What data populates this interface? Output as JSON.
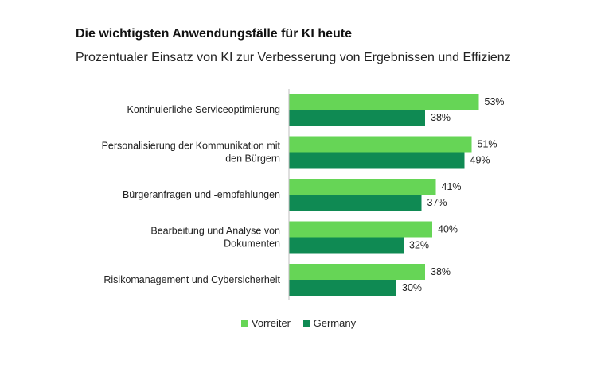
{
  "chart_data": {
    "type": "bar",
    "orientation": "horizontal",
    "title": "Die wichtigsten Anwendungsfälle für KI heute",
    "subtitle": "Prozentualer Einsatz von KI zur Verbesserung von Ergebnissen und Effizienz",
    "categories": [
      [
        "Kontinuierliche Serviceoptimierung"
      ],
      [
        "Personalisierung der Kommunikation mit",
        "den Bürgern"
      ],
      [
        "Bürgeranfragen und -empfehlungen"
      ],
      [
        "Bearbeitung und Analyse von",
        "Dokumenten"
      ],
      [
        "Risikomanagement und Cybersicherheit"
      ]
    ],
    "series": [
      {
        "name": "Vorreiter",
        "values": [
          53,
          51,
          41,
          40,
          38
        ],
        "labels": [
          "53%",
          "51%",
          "41%",
          "40%",
          "38%"
        ],
        "color": "#66d556"
      },
      {
        "name": "Germany",
        "values": [
          38,
          49,
          37,
          32,
          30
        ],
        "labels": [
          "38%",
          "49%",
          "37%",
          "32%",
          "30%"
        ],
        "color": "#0f8a53"
      }
    ],
    "xlim": [
      0,
      100
    ],
    "legend_position": "bottom-center",
    "grid": false
  }
}
